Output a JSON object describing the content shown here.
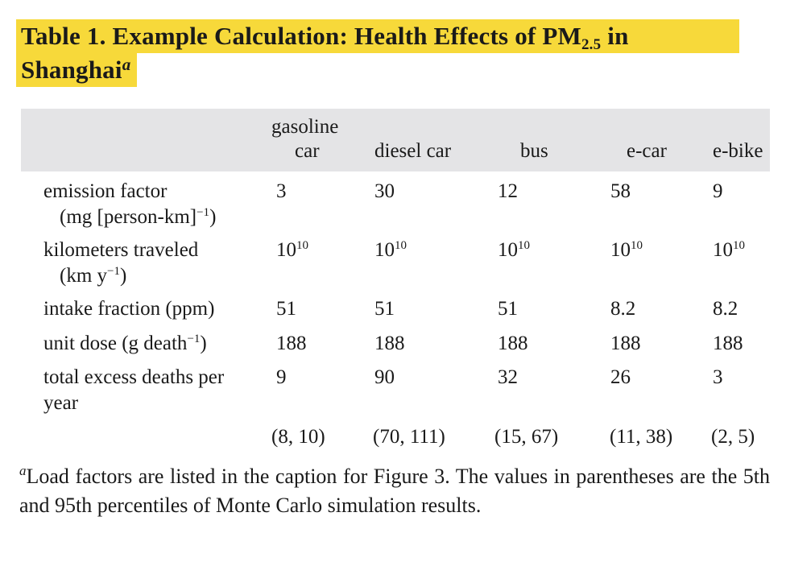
{
  "title": {
    "prefix": "Table 1. Example Calculation: Health Effects of PM",
    "subscript": "2.5",
    "suffix": " in",
    "line2": "Shanghai",
    "note_marker": "a"
  },
  "columns": {
    "gasoline_line1": "gasoline",
    "gasoline_line2": "car",
    "diesel": "diesel car",
    "bus": "bus",
    "ecar": "e-car",
    "ebike": "e-bike"
  },
  "rows": {
    "emission": {
      "label_line1": "emission factor",
      "label_line2": "(mg [person-km]",
      "label_line2_exp": "−1",
      "label_line2_end": ")",
      "values": [
        "3",
        "30",
        "12",
        "58",
        "9"
      ]
    },
    "km": {
      "label_line1": "kilometers traveled",
      "label_line2": "(km y",
      "label_line2_exp": "−1",
      "label_line2_end": ")",
      "base": "10",
      "exp": "10"
    },
    "intake": {
      "label": "intake fraction (ppm)",
      "values": [
        "51",
        "51",
        "51",
        "8.2",
        "8.2"
      ]
    },
    "dose": {
      "label": "unit dose (g death",
      "label_exp": "−1",
      "label_end": ")",
      "values": [
        "188",
        "188",
        "188",
        "188",
        "188"
      ]
    },
    "deaths": {
      "label_line1": "total excess deaths per",
      "label_line2": "year",
      "values": [
        "9",
        "90",
        "32",
        "26",
        "3"
      ]
    },
    "intervals": [
      "(8, 10)",
      "(70, 111)",
      "(15, 67)",
      "(11, 38)",
      "(2, 5)"
    ]
  },
  "footnote": {
    "marker": "a",
    "text": "Load factors are listed in the caption for Figure 3. The values in parentheses are the 5th and 95th percentiles of Monte Carlo simulation results."
  }
}
